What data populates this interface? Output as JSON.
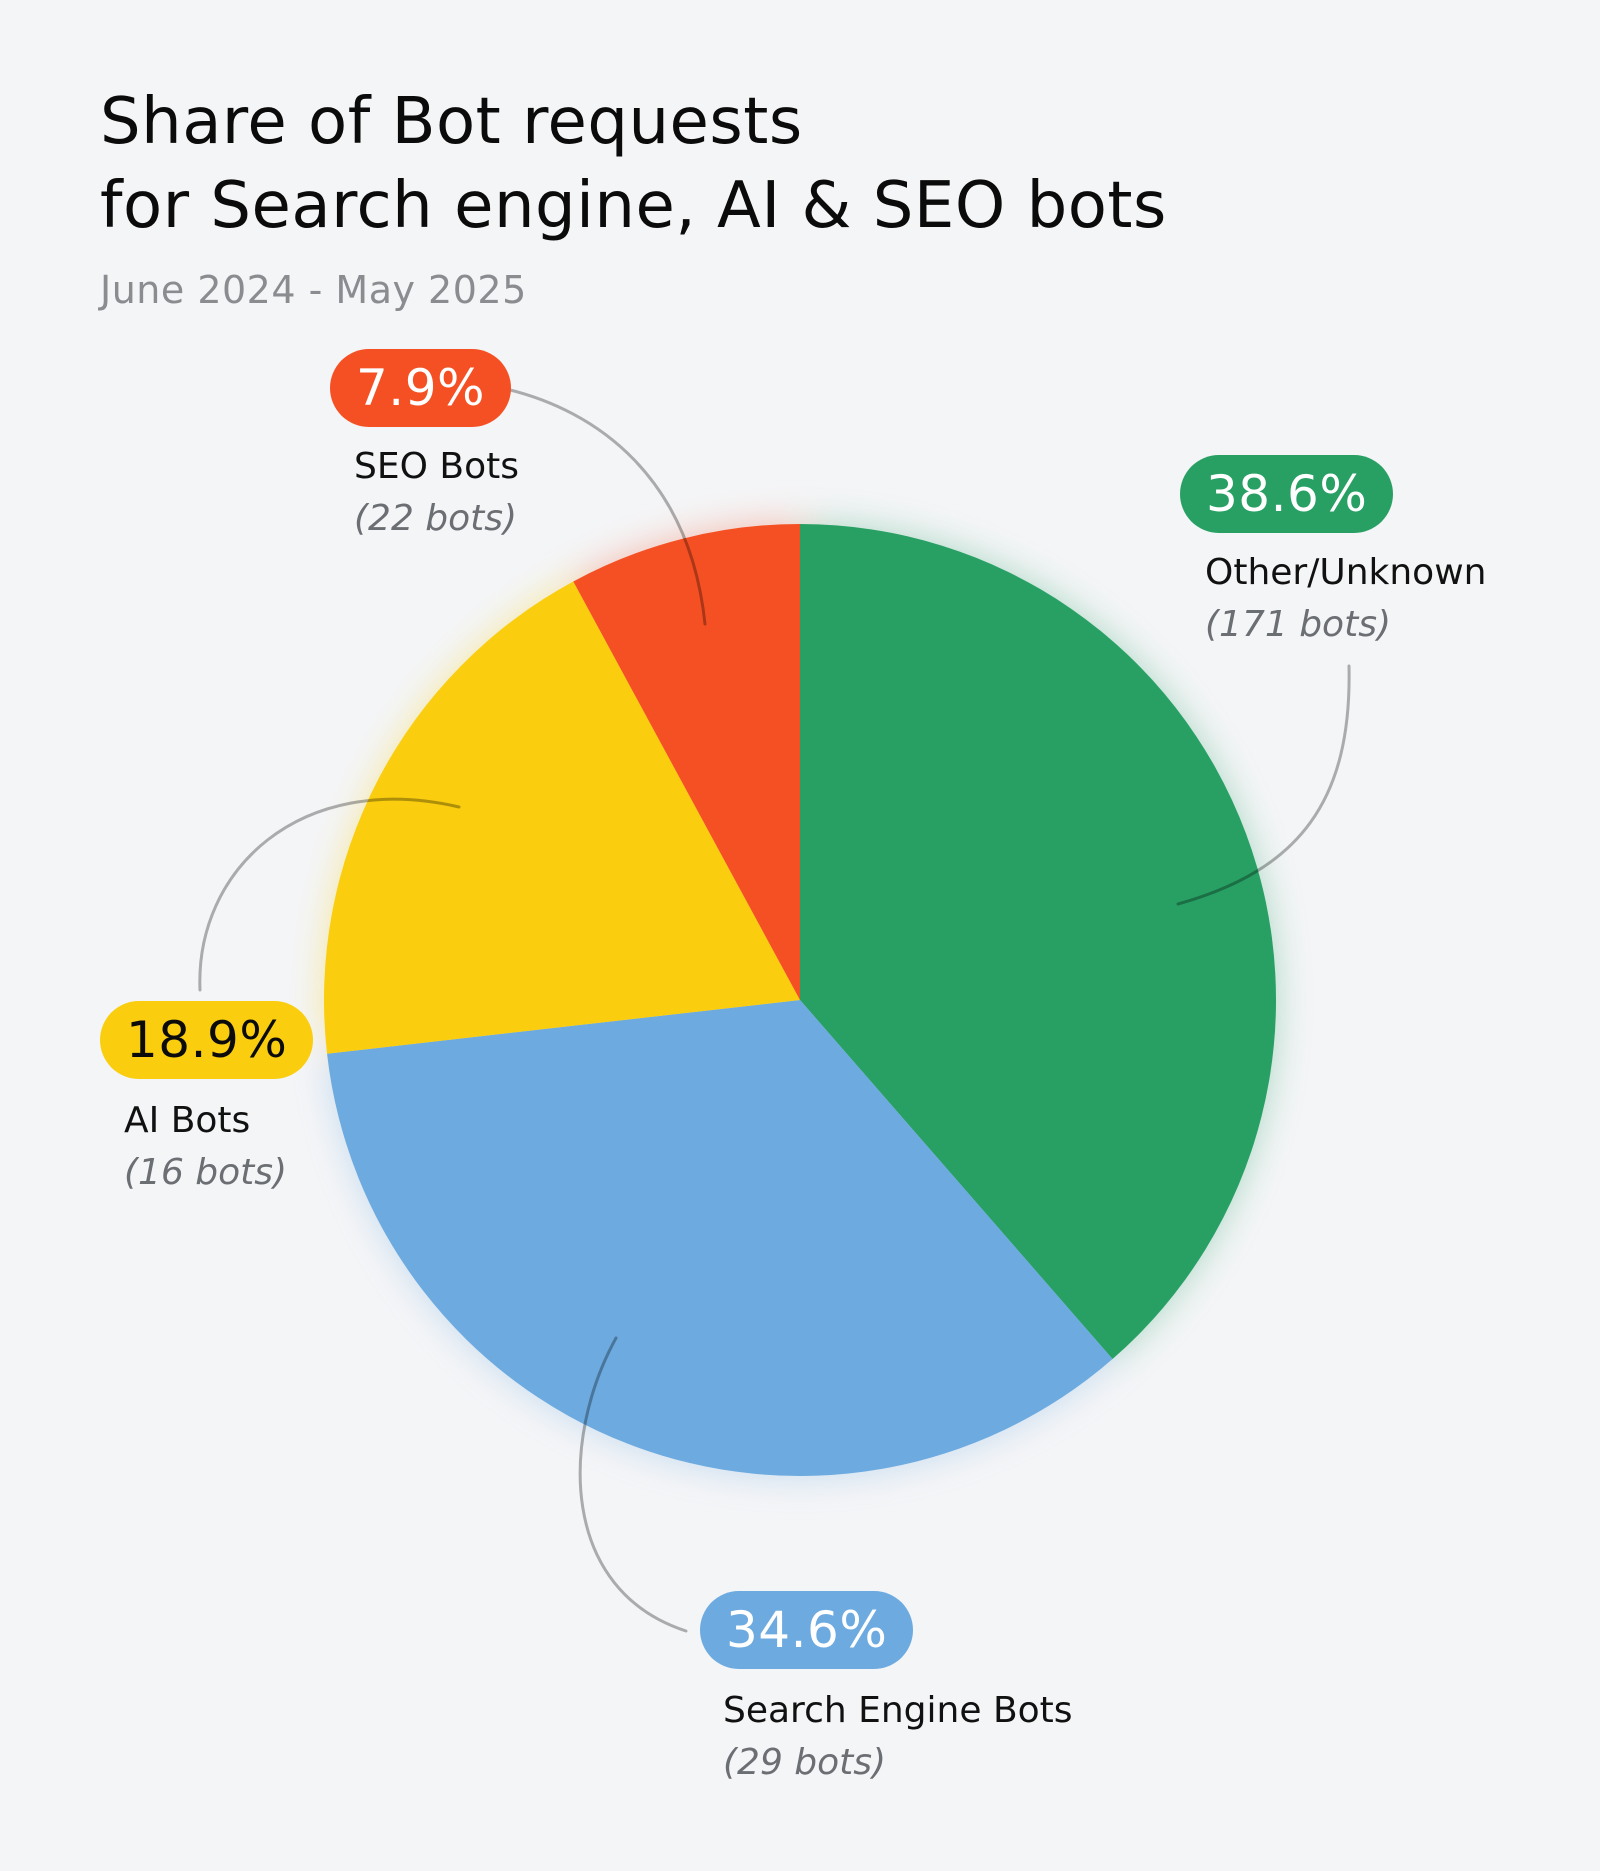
{
  "header": {
    "title_line1": "Share of Bot requests",
    "title_line2": "for Search engine, AI & SEO bots",
    "subtitle": "June 2024 - May 2025"
  },
  "labels": {
    "other": {
      "pct": "38.6%",
      "name": "Other/Unknown",
      "count": "(171 bots)"
    },
    "search": {
      "pct": "34.6%",
      "name": "Search Engine Bots",
      "count": "(29 bots)"
    },
    "ai": {
      "pct": "18.9%",
      "name": "AI Bots",
      "count": "(16 bots)"
    },
    "seo": {
      "pct": "7.9%",
      "name": "SEO Bots",
      "count": "(22 bots)"
    }
  },
  "colors": {
    "other": "#28a064",
    "search": "#6caae0",
    "ai": "#facd0f",
    "seo": "#f55023",
    "background": "#f4f5f7",
    "leader": "#9c9c9c"
  },
  "chart_data": {
    "type": "pie",
    "title": "Share of Bot requests for Search engine, AI & SEO bots",
    "subtitle": "June 2024 - May 2025",
    "categories": [
      "Other/Unknown",
      "Search Engine Bots",
      "AI Bots",
      "SEO Bots"
    ],
    "values": [
      38.6,
      34.6,
      18.9,
      7.9
    ],
    "bot_counts": [
      171,
      29,
      16,
      22
    ],
    "units": "%",
    "start_angle": "12 o'clock, clockwise",
    "legend": "none (callout labels with leader lines)"
  }
}
